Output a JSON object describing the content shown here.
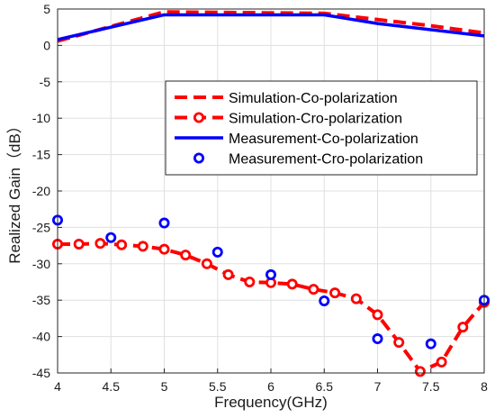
{
  "chart_data": {
    "type": "line",
    "xlabel": "Frequency(GHz)",
    "ylabel": "Realized Gain（dB）",
    "xlim": [
      4,
      8
    ],
    "ylim": [
      -45,
      5
    ],
    "xticks": [
      4,
      4.5,
      5,
      5.5,
      6,
      6.5,
      7,
      7.5,
      8
    ],
    "yticks": [
      5,
      0,
      -5,
      -10,
      -15,
      -20,
      -25,
      -30,
      -35,
      -40,
      -45
    ],
    "grid": true,
    "legend_position": "top-right",
    "colors": {
      "red": "#ff0000",
      "blue": "#0000ff"
    },
    "series": [
      {
        "name": "Simulation-Co-polarization",
        "style": "dashed-line",
        "color": "#ff0000",
        "x": [
          4,
          5,
          6.5,
          7.5,
          8
        ],
        "y": [
          0.6,
          4.6,
          4.4,
          2.7,
          1.7
        ]
      },
      {
        "name": "Simulation-Cro-polarization",
        "style": "dashed-line-circle-markers",
        "color": "#ff0000",
        "x": [
          4,
          4.2,
          4.4,
          4.6,
          4.8,
          5,
          5.2,
          5.4,
          5.6,
          5.8,
          6,
          6.2,
          6.4,
          6.6,
          6.8,
          7,
          7.2,
          7.4,
          7.6,
          7.8,
          8
        ],
        "y": [
          -27.3,
          -27.3,
          -27.2,
          -27.4,
          -27.6,
          -28.0,
          -28.8,
          -30.0,
          -31.5,
          -32.5,
          -32.6,
          -32.8,
          -33.5,
          -34.0,
          -34.8,
          -37.0,
          -40.8,
          -44.8,
          -43.5,
          -38.7,
          -35.3
        ]
      },
      {
        "name": "Measurement-Co-polarization",
        "style": "solid-line",
        "color": "#0000ff",
        "x": [
          4,
          5,
          6.5,
          7,
          8
        ],
        "y": [
          0.8,
          4.2,
          4.2,
          3.0,
          1.3
        ]
      },
      {
        "name": "Measurement-Cro-polarization",
        "style": "circle-markers",
        "color": "#0000ff",
        "x": [
          4,
          4.5,
          5,
          5.5,
          6,
          6.5,
          7,
          7.5,
          8
        ],
        "y": [
          -24.0,
          -26.4,
          -24.4,
          -28.4,
          -31.5,
          -35.1,
          -40.3,
          -41.0,
          -35.0
        ]
      }
    ]
  }
}
